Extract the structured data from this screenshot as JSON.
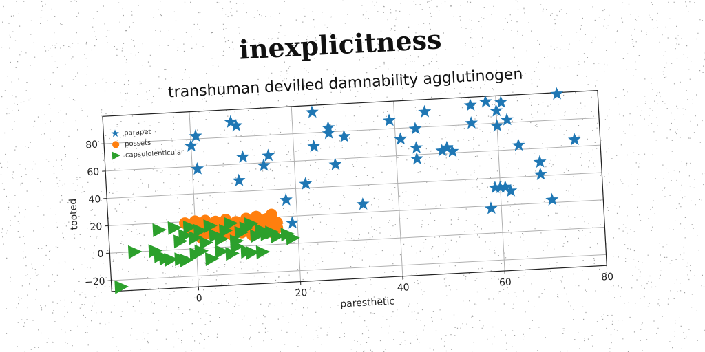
{
  "chart_data": {
    "type": "scatter",
    "title": "inexplicitness",
    "subtitle": "transhuman devilled damnability agglutinogen",
    "xlabel": "paresthetic",
    "ylabel": "tooted",
    "xlim": [
      -17,
      80
    ],
    "ylim": [
      -28,
      100
    ],
    "xticks": [
      0,
      20,
      40,
      60,
      80
    ],
    "yticks": [
      -20,
      0,
      20,
      40,
      60,
      80
    ],
    "xtick_labels": [
      "0",
      "20",
      "40",
      "60",
      "80"
    ],
    "ytick_labels": [
      "−20",
      "0",
      "20",
      "40",
      "60",
      "80"
    ],
    "grid": true,
    "legend_position": "top-left",
    "series": [
      {
        "name": "parapet",
        "marker": "star",
        "color": "#1f77b4",
        "points": [
          [
            1,
            82
          ],
          [
            0,
            75
          ],
          [
            1,
            58
          ],
          [
            8,
            91
          ],
          [
            9,
            88
          ],
          [
            10,
            65
          ],
          [
            9,
            48
          ],
          [
            14,
            58
          ],
          [
            15,
            65
          ],
          [
            18,
            32
          ],
          [
            19,
            15
          ],
          [
            22,
            43
          ],
          [
            24,
            70
          ],
          [
            24,
            95
          ],
          [
            27,
            83
          ],
          [
            27,
            79
          ],
          [
            28,
            56
          ],
          [
            30,
            76
          ],
          [
            33,
            26
          ],
          [
            39,
            86
          ],
          [
            41,
            72
          ],
          [
            44,
            79
          ],
          [
            44,
            65
          ],
          [
            44,
            57
          ],
          [
            46,
            91
          ],
          [
            49,
            62
          ],
          [
            50,
            64
          ],
          [
            51,
            61
          ],
          [
            55,
            94
          ],
          [
            55,
            81
          ],
          [
            58,
            18
          ],
          [
            58,
            96
          ],
          [
            59,
            33
          ],
          [
            60,
            78
          ],
          [
            60,
            89
          ],
          [
            60,
            33
          ],
          [
            61,
            33
          ],
          [
            61,
            95
          ],
          [
            62,
            82
          ],
          [
            62,
            30
          ],
          [
            64,
            63
          ],
          [
            68,
            50
          ],
          [
            68,
            41
          ],
          [
            70,
            22
          ],
          [
            72,
            99
          ],
          [
            75,
            65
          ]
        ]
      },
      {
        "name": "possets",
        "marker": "circle",
        "color": "#ff7f0e",
        "points": [
          [
            -2,
            19
          ],
          [
            -1,
            15
          ],
          [
            0,
            20
          ],
          [
            0,
            11
          ],
          [
            1,
            16
          ],
          [
            1,
            8
          ],
          [
            2,
            14
          ],
          [
            2,
            20
          ],
          [
            3,
            10
          ],
          [
            3,
            17
          ],
          [
            4,
            13
          ],
          [
            4,
            19
          ],
          [
            5,
            8
          ],
          [
            5,
            16
          ],
          [
            6,
            11
          ],
          [
            6,
            20
          ],
          [
            7,
            14
          ],
          [
            7,
            9
          ],
          [
            8,
            18
          ],
          [
            8,
            12
          ],
          [
            9,
            16
          ],
          [
            9,
            10
          ],
          [
            10,
            20
          ],
          [
            10,
            13
          ],
          [
            11,
            8
          ],
          [
            11,
            17
          ],
          [
            12,
            11
          ],
          [
            12,
            21
          ],
          [
            13,
            15
          ],
          [
            13,
            10
          ],
          [
            14,
            19
          ],
          [
            14,
            13
          ],
          [
            15,
            22
          ],
          [
            15,
            9
          ],
          [
            16,
            16
          ],
          [
            16,
            12
          ]
        ]
      },
      {
        "name": "capsulolenticular",
        "marker": "triangle-right",
        "color": "#2ca02c",
        "points": [
          [
            -7,
            15
          ],
          [
            -4,
            16
          ],
          [
            -3,
            6
          ],
          [
            -2,
            10
          ],
          [
            -1,
            16
          ],
          [
            0,
            8
          ],
          [
            1,
            13
          ],
          [
            2,
            4
          ],
          [
            3,
            16
          ],
          [
            4,
            9
          ],
          [
            5,
            6
          ],
          [
            6,
            12
          ],
          [
            7,
            17
          ],
          [
            8,
            4
          ],
          [
            9,
            10
          ],
          [
            10,
            13
          ],
          [
            11,
            16
          ],
          [
            12,
            7
          ],
          [
            13,
            11
          ],
          [
            14,
            8
          ],
          [
            15,
            9
          ],
          [
            16,
            6
          ],
          [
            18,
            7
          ],
          [
            19,
            4
          ],
          [
            -12,
            0
          ],
          [
            -8,
            0
          ],
          [
            -7,
            -4
          ],
          [
            -6,
            -6
          ],
          [
            -5,
            -7
          ],
          [
            -3,
            -7
          ],
          [
            -2,
            -8
          ],
          [
            0,
            -4
          ],
          [
            1,
            -2
          ],
          [
            3,
            -8
          ],
          [
            5,
            -3
          ],
          [
            7,
            -5
          ],
          [
            8,
            0
          ],
          [
            10,
            -4
          ],
          [
            11,
            -5
          ],
          [
            13,
            -5
          ],
          [
            -15,
            -25
          ]
        ]
      }
    ]
  }
}
